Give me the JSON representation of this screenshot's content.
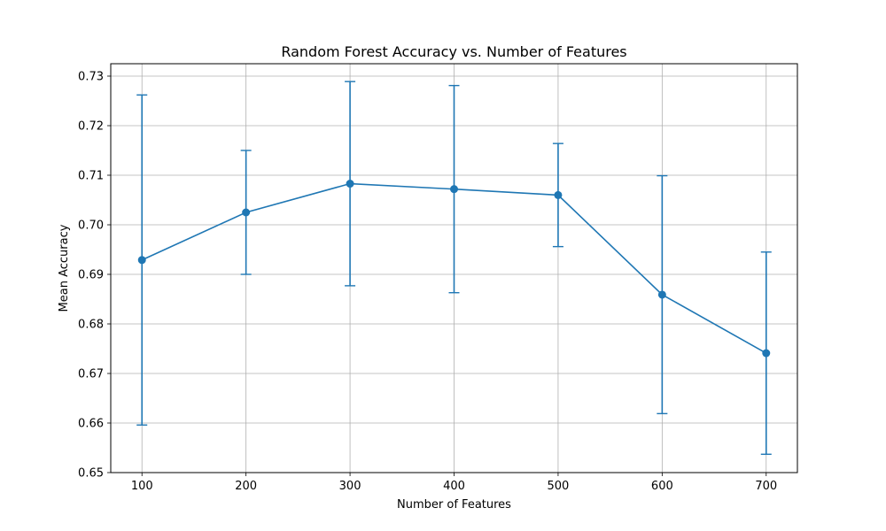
{
  "chart_data": {
    "type": "line",
    "title": "Random Forest Accuracy vs. Number of Features",
    "xlabel": "Number of Features",
    "ylabel": "Mean Accuracy",
    "x": [
      100,
      200,
      300,
      400,
      500,
      600,
      700
    ],
    "x_tick_labels": [
      "100",
      "200",
      "300",
      "400",
      "500",
      "600",
      "700"
    ],
    "xlim": [
      70,
      730
    ],
    "ylim": [
      0.65,
      0.7325
    ],
    "y_ticks": [
      0.65,
      0.66,
      0.67,
      0.68,
      0.69,
      0.7,
      0.71,
      0.72,
      0.73
    ],
    "y_tick_labels": [
      "0.65",
      "0.66",
      "0.67",
      "0.68",
      "0.69",
      "0.70",
      "0.71",
      "0.72",
      "0.73"
    ],
    "grid": true,
    "marker": "circle",
    "error_bars": true,
    "series": [
      {
        "color": "#1f77b4",
        "values": [
          0.6929,
          0.7025,
          0.7083,
          0.7072,
          0.706,
          0.6859,
          0.6741
        ],
        "errors": [
          0.0333,
          0.0125,
          0.0206,
          0.0209,
          0.0104,
          0.024,
          0.0204
        ]
      }
    ]
  }
}
